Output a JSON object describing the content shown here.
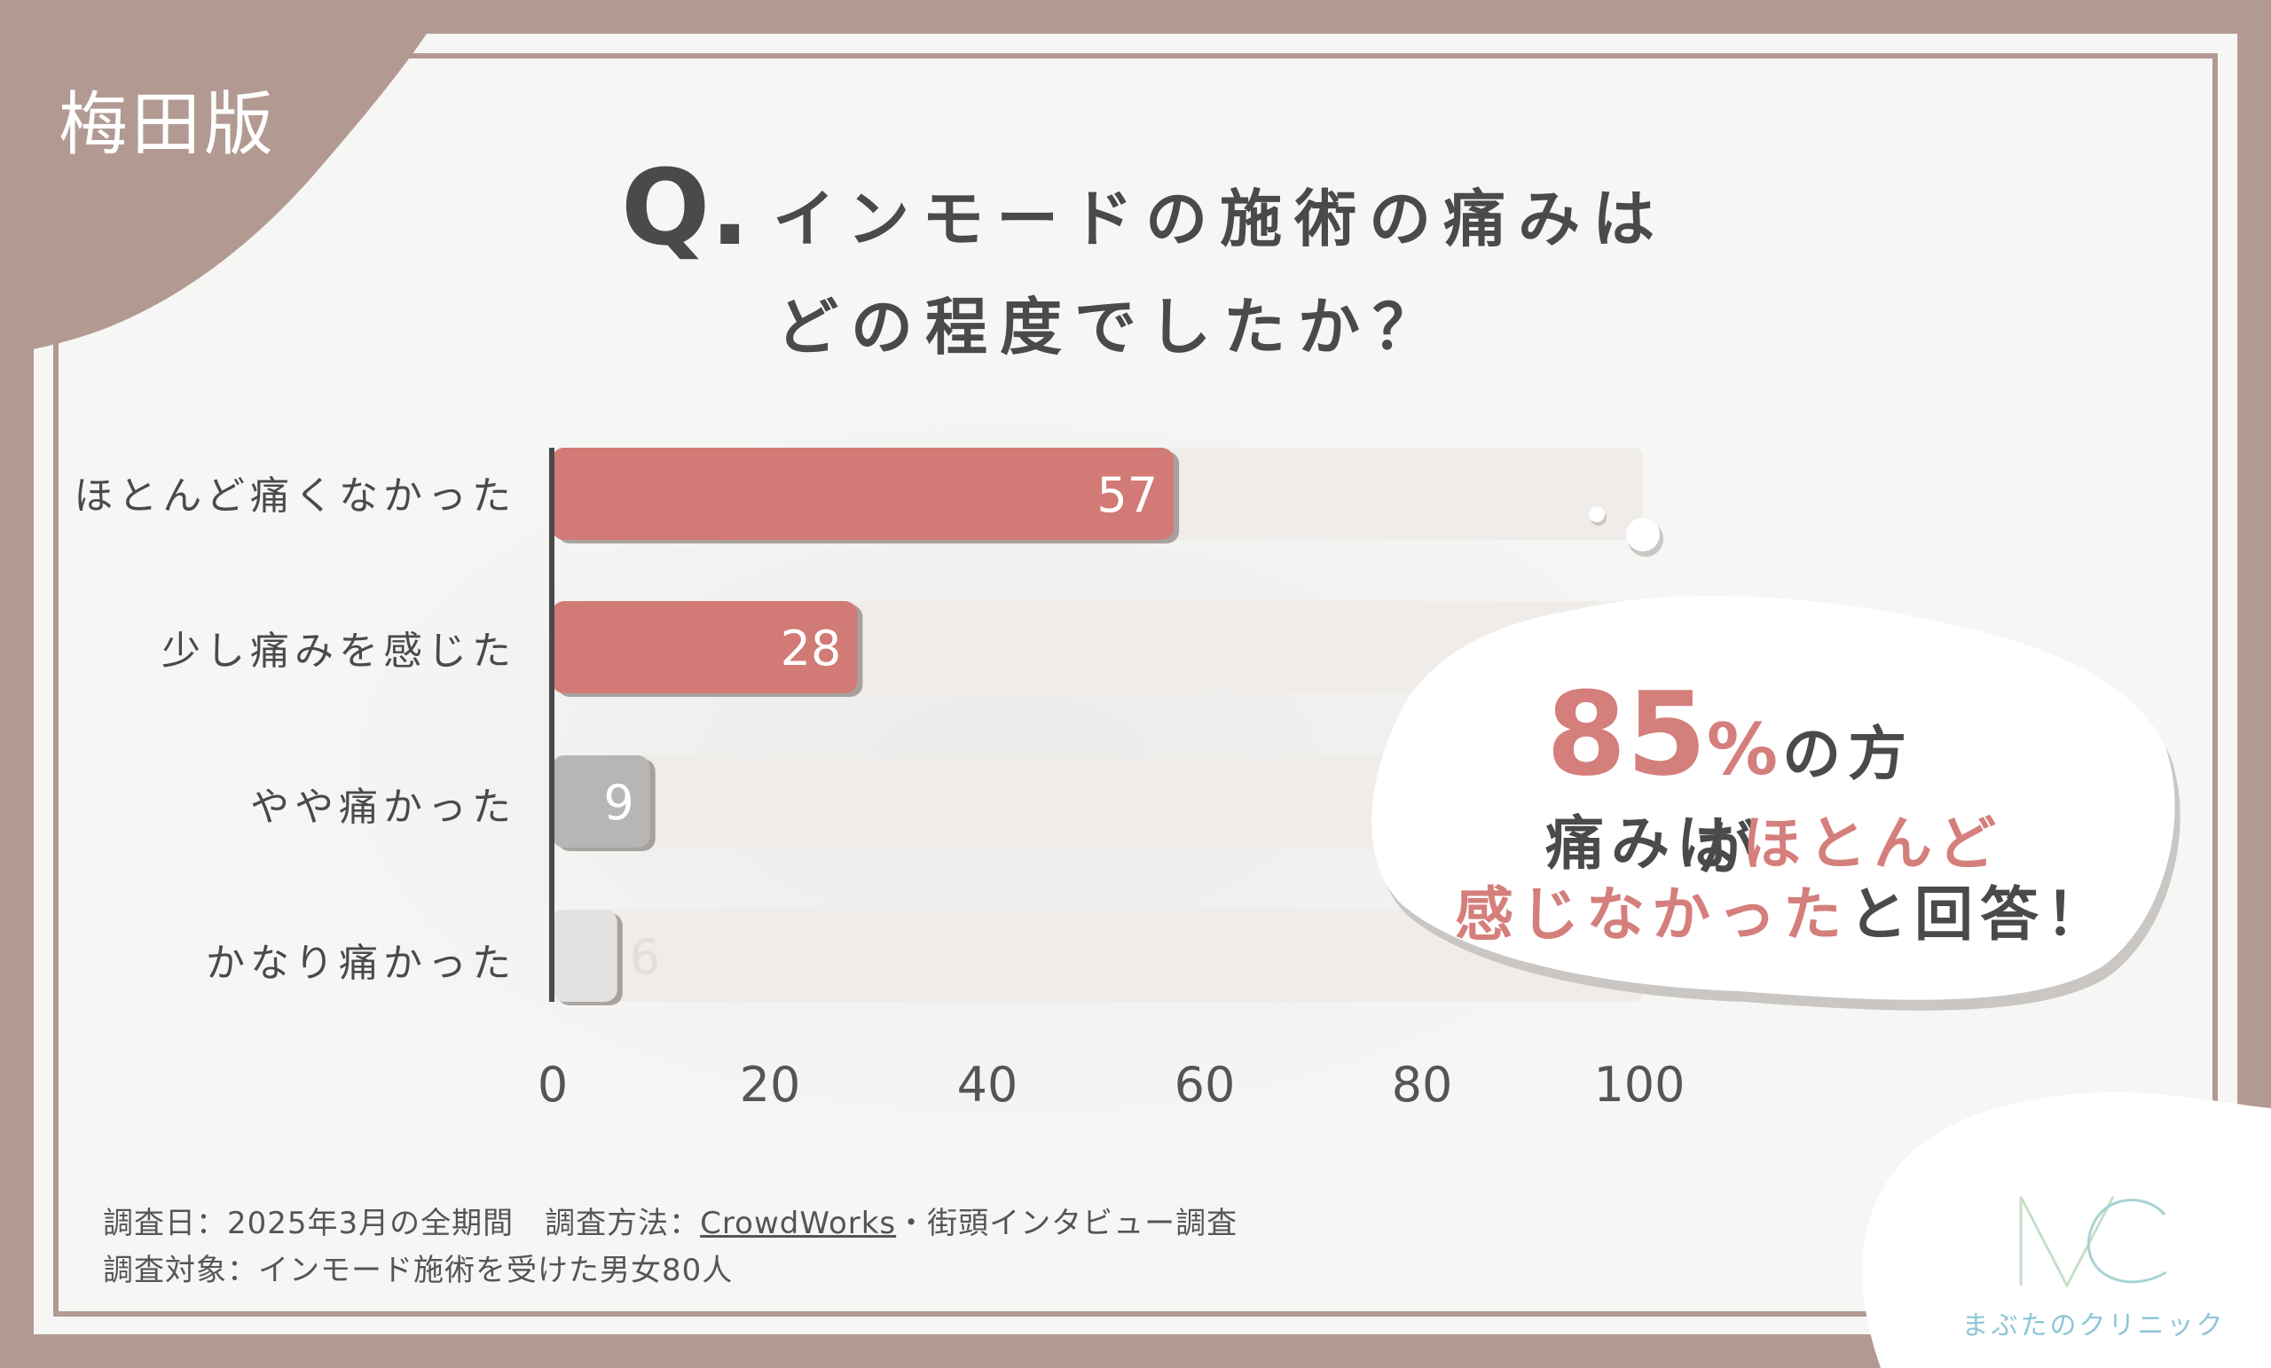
{
  "region_label": "梅田版",
  "title": {
    "q": "Q.",
    "line1": "インモードの施術の痛みは",
    "line2": "どの程度でしたか？"
  },
  "chart_data": {
    "type": "bar",
    "orientation": "horizontal",
    "categories": [
      "ほとんど痛くなかった",
      "少し痛みを感じた",
      "やや痛かった",
      "かなり痛かった"
    ],
    "values": [
      57,
      28,
      9,
      6
    ],
    "value_labels": [
      "57",
      "28",
      "9",
      "6"
    ],
    "xlim": [
      0,
      100
    ],
    "xticks": [
      "0",
      "20",
      "40",
      "60",
      "80",
      "100"
    ],
    "colors": [
      "#d27a76",
      "#d27a76",
      "#b8b6b4",
      "#e2e1e0"
    ],
    "label_colors": [
      "#ffffff",
      "#ffffff",
      "#ffffff",
      "#e0dfde"
    ],
    "track_color": "#efecea",
    "grid": false,
    "legend": "none"
  },
  "callout": {
    "pct": "85",
    "pct_sign": "%",
    "line1_rest": "の方が",
    "line2_dark": "痛みは",
    "line2_pink": "ほとんど",
    "line3_pink": "感じなかった",
    "line3_dark": "と回答！"
  },
  "footer": {
    "line1_a": "調査日：2025年3月の全期間　調査方法：",
    "line1_link": "CrowdWorks",
    "line1_b": "・街頭インタビュー調査",
    "line2": "調査対象：インモード施術を受けた男女80人"
  },
  "logo": {
    "mark": "MC",
    "name": "まぶたのクリニック"
  }
}
